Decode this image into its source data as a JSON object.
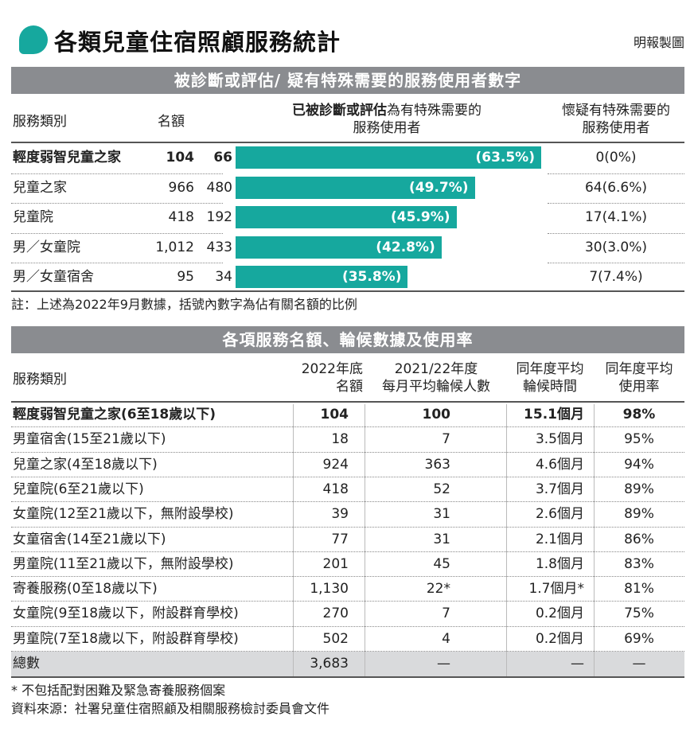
{
  "title": "各類兒童住宿照顧服務統計",
  "credit": "明報製圖",
  "section1": {
    "header": "被診斷或評估/ 疑有特殊需要的服務使用者數字",
    "col_type": "服務類別",
    "col_quota": "名額",
    "col_diag_bold": "已被診斷或評估",
    "col_diag_rest": "為有特殊需要的",
    "col_diag_line2": "服務使用者",
    "col_susp_line1": "懷疑有特殊需要的",
    "col_susp_line2": "服務使用者",
    "note": "註：上述為2022年9月數據，括號內數字為佔有關名額的比例"
  },
  "chart_data": {
    "type": "bar",
    "categories": [
      "輕度弱智兒童之家",
      "兒童之家",
      "兒童院",
      "男／女童院",
      "男／女童宿舍"
    ],
    "quota": [
      104,
      966,
      418,
      1012,
      95
    ],
    "quota_text": [
      "104",
      "966",
      "418",
      "1,012",
      "95"
    ],
    "series": [
      {
        "values": [
          66,
          480,
          192,
          433,
          34
        ]
      },
      {
        "values": [
          63.5,
          49.7,
          45.9,
          42.8,
          35.8
        ]
      }
    ],
    "bar_labels": [
      "(63.5%)",
      "(49.7%)",
      "(45.9%)",
      "(42.8%)",
      "(35.8%)"
    ],
    "suspected": [
      "0(0%)",
      "64(6.6%)",
      "17(4.1%)",
      "30(3.0%)",
      "7(7.4%)"
    ],
    "bar_color": "#16a89e"
  },
  "section2": {
    "header": "各項服務名額、輪候數據及使用率",
    "col_type": "服務類別",
    "col_quota_1": "2022年底",
    "col_quota_2": "名額",
    "col_wait_1": "2021/22年度",
    "col_wait_2": "每月平均輪候人數",
    "col_time_1": "同年度平均",
    "col_time_2": "輪候時間",
    "col_use_1": "同年度平均",
    "col_use_2": "使用率",
    "rows": [
      {
        "type": "輕度弱智兒童之家(6至18歲以下)",
        "quota": "104",
        "wait": "100",
        "time": "15.1個月",
        "use": "98%"
      },
      {
        "type": "男童宿舍(15至21歲以下)",
        "quota": "18",
        "wait": "7",
        "time": "3.5個月",
        "use": "95%"
      },
      {
        "type": "兒童之家(4至18歲以下)",
        "quota": "924",
        "wait": "363",
        "time": "4.6個月",
        "use": "94%"
      },
      {
        "type": "兒童院(6至21歲以下)",
        "quota": "418",
        "wait": "52",
        "time": "3.7個月",
        "use": "89%"
      },
      {
        "type": "女童院(12至21歲以下，無附設學校)",
        "quota": "39",
        "wait": "31",
        "time": "2.6個月",
        "use": "89%"
      },
      {
        "type": "女童宿舍(14至21歲以下)",
        "quota": "77",
        "wait": "31",
        "time": "2.1個月",
        "use": "86%"
      },
      {
        "type": "男童院(11至21歲以下，無附設學校)",
        "quota": "201",
        "wait": "45",
        "time": "1.8個月",
        "use": "83%"
      },
      {
        "type": "寄養服務(0至18歲以下)",
        "quota": "1,130",
        "wait": "22*",
        "time": "1.7個月*",
        "use": "81%"
      },
      {
        "type": "女童院(9至18歲以下，附設群育學校)",
        "quota": "270",
        "wait": "7",
        "time": "0.2個月",
        "use": "75%"
      },
      {
        "type": "男童院(7至18歲以下，附設群育學校)",
        "quota": "502",
        "wait": "4",
        "time": "0.2個月",
        "use": "69%"
      }
    ],
    "total": {
      "type": "總數",
      "quota": "3,683",
      "wait": "—",
      "time": "—",
      "use": "—"
    }
  },
  "footnote": "* 不包括配對困難及緊急寄養服務個案",
  "source": "資料來源：社署兒童住宿照顧及相關服務檢討委員會文件"
}
